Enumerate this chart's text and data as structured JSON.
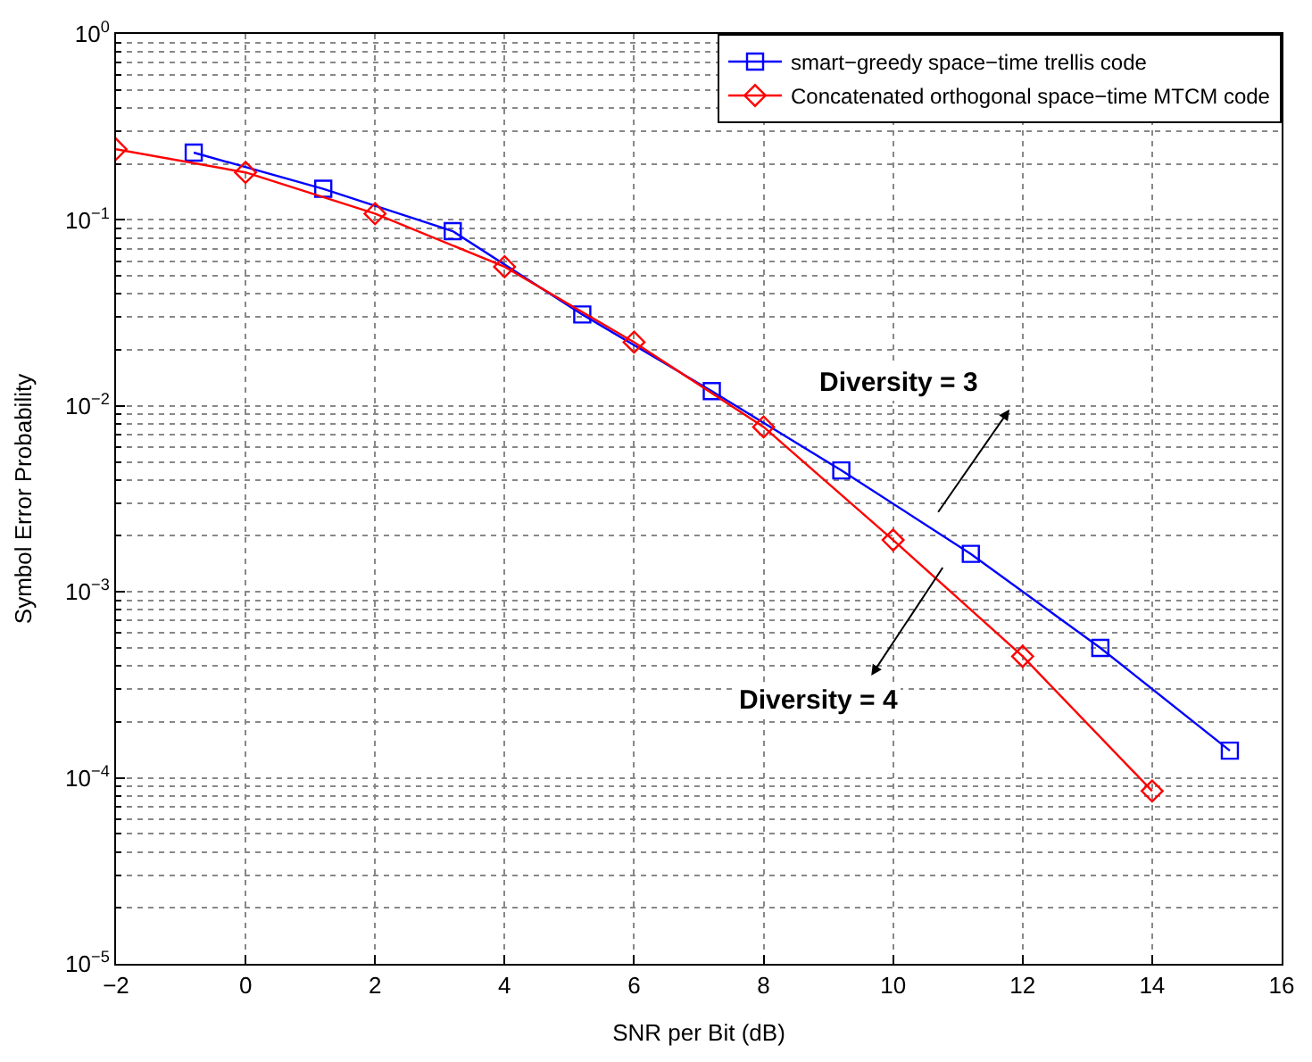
{
  "chart_data": {
    "type": "line",
    "xlabel": "SNR per Bit (dB)",
    "ylabel": "Symbol Error Probability",
    "log": "y",
    "grid": true,
    "legend": "top right",
    "line_style": "solid",
    "xlim": [
      -2,
      16
    ],
    "xticks": [
      {
        "value": -2,
        "label": "−2"
      },
      0,
      2,
      4,
      6,
      8,
      10,
      12,
      14,
      16
    ],
    "ylim": [
      1e-05,
      1
    ],
    "yticks": [
      {
        "value": 1e-05,
        "label": "10$^{−5}$"
      },
      {
        "value": 0.0001,
        "label": "10$^{−4}$"
      },
      {
        "value": 0.001,
        "label": "10$^{−3}$"
      },
      {
        "value": 0.01,
        "label": "10$^{−2}$"
      },
      {
        "value": 0.1,
        "label": "10$^{−1}$"
      },
      {
        "value": 1,
        "label": "10$^{0}$"
      }
    ],
    "series": [
      {
        "name": "smart−greedy space−time trellis code",
        "color": "#0000ff",
        "marker": "square",
        "x": [
          -0.8,
          1.2,
          3.2,
          5.2,
          7.2,
          9.2,
          11.2,
          13.2,
          15.2
        ],
        "values": [
          0.23,
          0.147,
          0.087,
          0.031,
          0.012,
          0.0045,
          0.0016,
          0.0005,
          0.00014
        ]
      },
      {
        "name": "Concatenated orthogonal space−time MTCM code",
        "color": "#ff0000",
        "marker": "diamond",
        "x": [
          -2,
          0,
          2,
          4,
          6,
          8,
          10,
          12,
          14
        ],
        "values": [
          0.24,
          0.18,
          0.108,
          0.056,
          0.022,
          0.0077,
          0.0019,
          0.00045,
          8.5e-05
        ]
      }
    ],
    "annotations": [
      "Diversity = 3",
      "Diversity = 4"
    ]
  }
}
